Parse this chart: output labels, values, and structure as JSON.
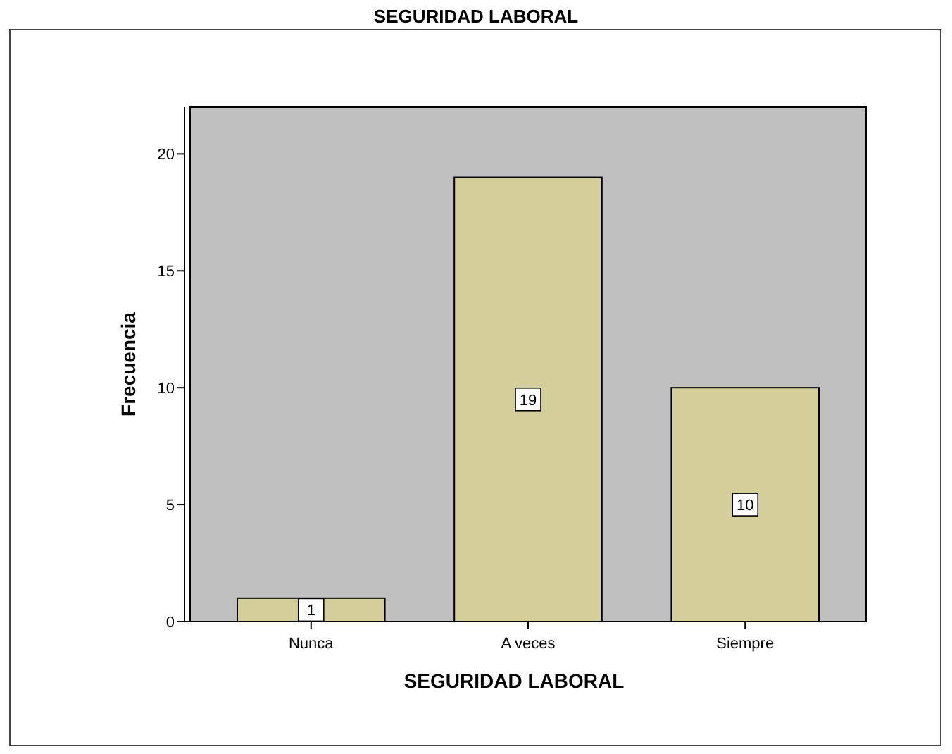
{
  "chart_data": {
    "type": "bar",
    "title": "SEGURIDAD LABORAL",
    "xlabel": "SEGURIDAD LABORAL",
    "ylabel": "Frecuencia",
    "categories": [
      "Nunca",
      "A veces",
      "Siempre"
    ],
    "values": [
      1,
      19,
      10
    ],
    "color": "#d4cf9a",
    "ylim": [
      0,
      22
    ],
    "yticks": [
      0,
      5,
      10,
      15,
      20
    ],
    "data_labels": true
  }
}
